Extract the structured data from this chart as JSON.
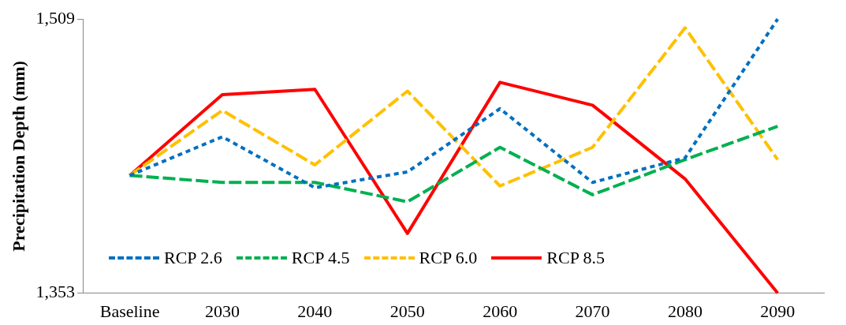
{
  "chart_data": {
    "type": "line",
    "ylabel": "Precipitation Depth (mm)",
    "categories": [
      "Baseline",
      "2030",
      "2040",
      "2050",
      "2060",
      "2070",
      "2080",
      "2090"
    ],
    "series": [
      {
        "name": "RCP 2.6",
        "color": "#0070c0",
        "line_style": "dotted",
        "values": [
          1420,
          1442,
          1413,
          1422,
          1458,
          1416,
          1430,
          1509
        ]
      },
      {
        "name": "RCP 4.5",
        "color": "#00b050",
        "line_style": "dashed",
        "values": [
          1420,
          1416,
          1416,
          1405,
          1436,
          1409,
          1429,
          1448
        ]
      },
      {
        "name": "RCP 6.0",
        "color": "#ffc000",
        "line_style": "dashed",
        "values": [
          1420,
          1457,
          1426,
          1468,
          1414,
          1436,
          1504,
          1429
        ]
      },
      {
        "name": "RCP 8.5",
        "color": "#ff0000",
        "line_style": "solid",
        "values": [
          1420,
          1466,
          1469,
          1387,
          1473,
          1460,
          1418,
          1353
        ]
      }
    ],
    "ylim": [
      1353,
      1509
    ],
    "yticks": [
      {
        "value": 1353,
        "label": "1,353"
      },
      {
        "value": 1509,
        "label": "1,509"
      }
    ],
    "grid": false,
    "legend": "bottom left",
    "marker": "none"
  }
}
